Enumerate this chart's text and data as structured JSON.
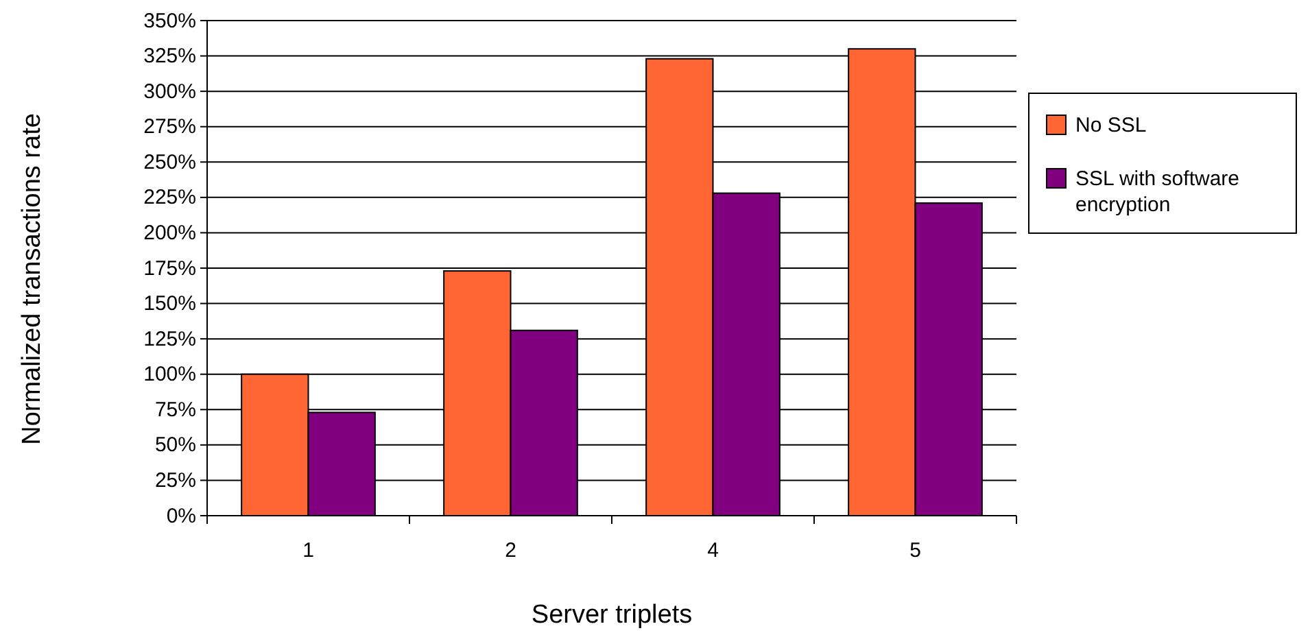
{
  "chart_data": {
    "type": "bar",
    "xlabel": "Server triplets",
    "ylabel": "Normalized transactions rate",
    "categories": [
      "1",
      "2",
      "4",
      "5"
    ],
    "series": [
      {
        "name": "No SSL",
        "color": "#ff6633",
        "values": [
          100,
          173,
          323,
          330
        ]
      },
      {
        "name": "SSL with software encryption",
        "color": "#800080",
        "values": [
          73,
          131,
          228,
          221
        ]
      }
    ],
    "ylim": [
      0,
      350
    ],
    "yticks": [
      {
        "value": 0,
        "label": "0%"
      },
      {
        "value": 25,
        "label": "25%"
      },
      {
        "value": 50,
        "label": "50%"
      },
      {
        "value": 75,
        "label": "75%"
      },
      {
        "value": 100,
        "label": "100%"
      },
      {
        "value": 125,
        "label": "125%"
      },
      {
        "value": 150,
        "label": "150%"
      },
      {
        "value": 175,
        "label": "175%"
      },
      {
        "value": 200,
        "label": "200%"
      },
      {
        "value": 225,
        "label": "225%"
      },
      {
        "value": 250,
        "label": "250%"
      },
      {
        "value": 275,
        "label": "275%"
      },
      {
        "value": 300,
        "label": "300%"
      },
      {
        "value": 325,
        "label": "325%"
      },
      {
        "value": 350,
        "label": "350%"
      }
    ],
    "grid": "y",
    "legend": "right"
  }
}
